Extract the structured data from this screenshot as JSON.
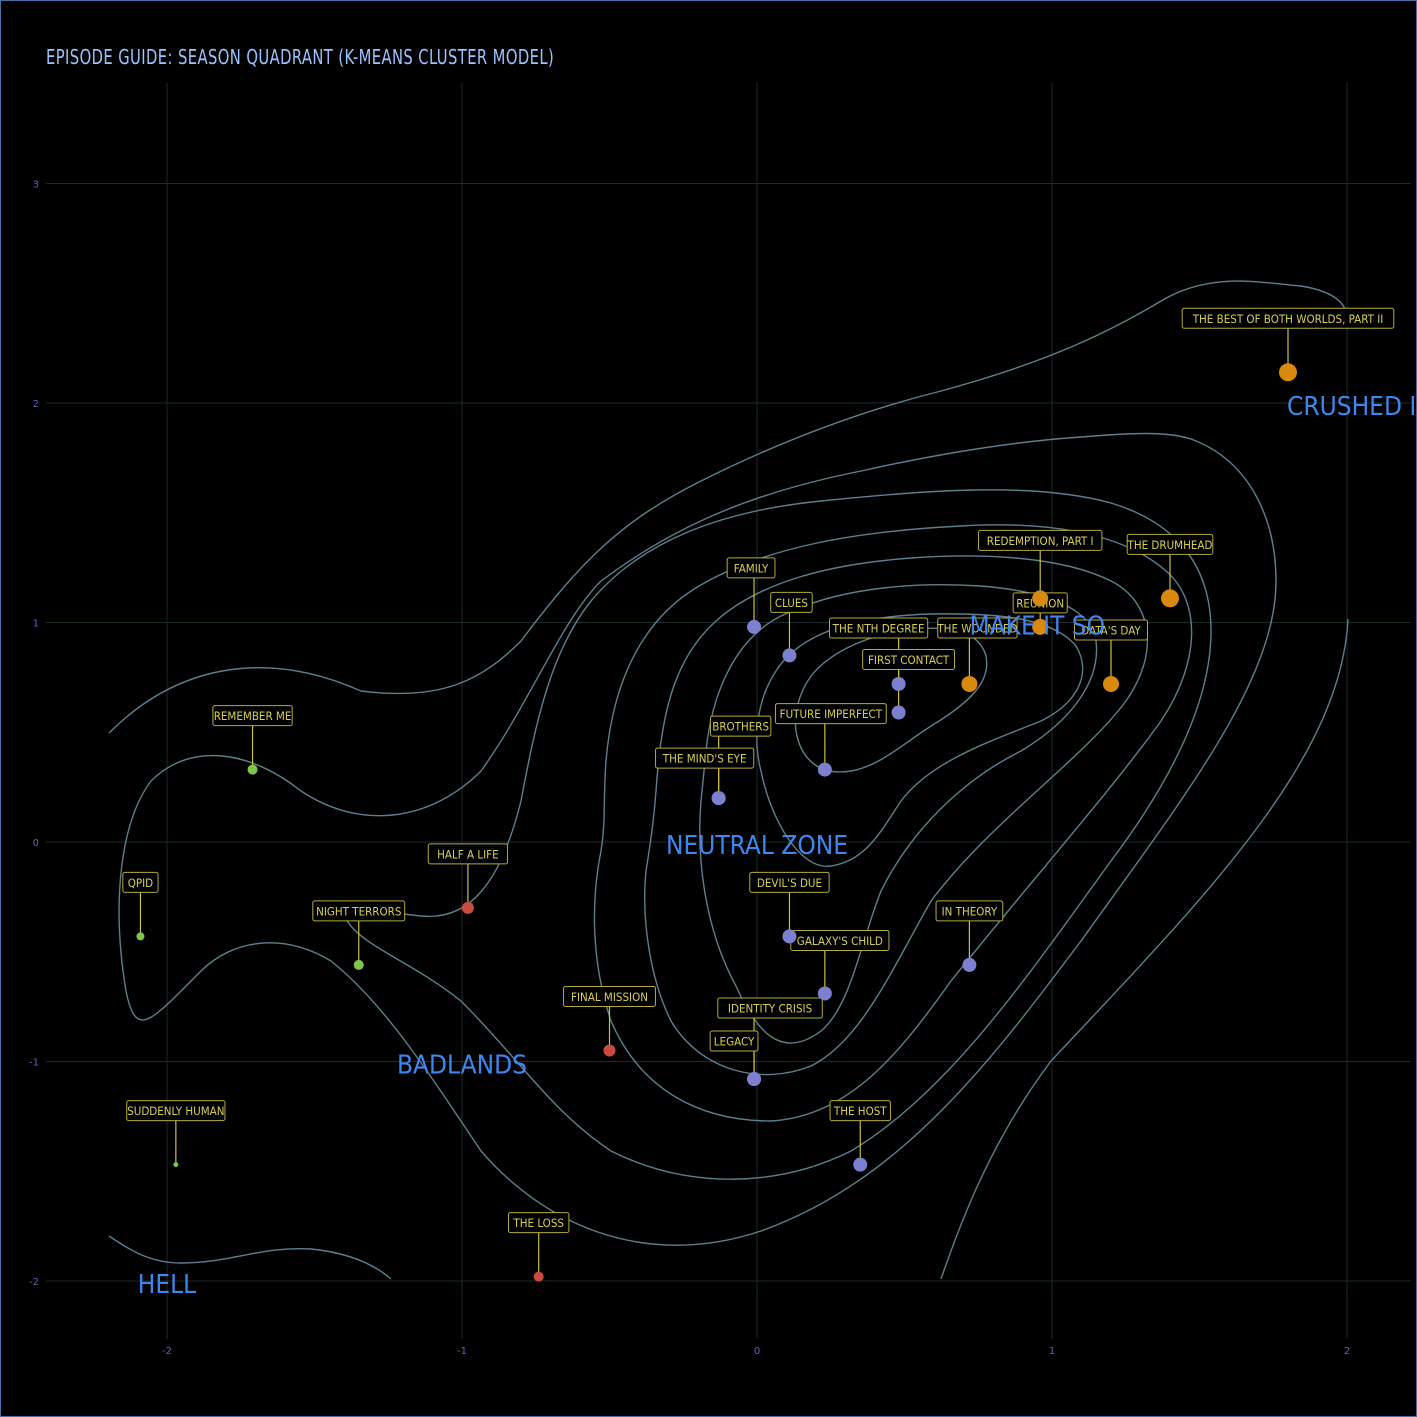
{
  "chart_data": {
    "type": "scatter",
    "title": "EPISODE GUIDE: SEASON QUADRANT (K-MEANS CLUSTER MODEL)",
    "xlabel": "",
    "ylabel": "",
    "xlim": [
      -2.3,
      2.2
    ],
    "ylim": [
      -2.2,
      3.45
    ],
    "x_ticks": [
      -2,
      -1,
      0,
      1,
      2
    ],
    "y_ticks": [
      -2,
      -1,
      0,
      1,
      2,
      3
    ],
    "grid": true,
    "cluster_colors": {
      "crushed": "#d98a0e",
      "neutral": "#7d7fcf",
      "badlands": "#c94a40",
      "hell": "#7ec64a"
    },
    "region_labels": [
      {
        "text": "CRUSHED IT",
        "x": 2.0,
        "y": 2.0
      },
      {
        "text": "MAKE IT SO",
        "x": 0.95,
        "y": 1.0
      },
      {
        "text": "NEUTRAL ZONE",
        "x": 0.0,
        "y": 0.0
      },
      {
        "text": "BADLANDS",
        "x": -1.0,
        "y": -1.0
      },
      {
        "text": "HELL",
        "x": -2.0,
        "y": -2.0
      }
    ],
    "points": [
      {
        "label": "THE BEST OF BOTH WORLDS, PART II",
        "x": 1.8,
        "y": 2.14,
        "cluster": "crushed",
        "size": 9
      },
      {
        "label": "REDEMPTION, PART I",
        "x": 0.96,
        "y": 1.11,
        "cluster": "crushed",
        "size": 8
      },
      {
        "label": "REUNION",
        "x": 0.96,
        "y": 0.98,
        "cluster": "crushed",
        "size": 8
      },
      {
        "label": "THE DRUMHEAD",
        "x": 1.4,
        "y": 1.11,
        "cluster": "crushed",
        "size": 9
      },
      {
        "label": "THE WOUNDED",
        "x": 0.72,
        "y": 0.72,
        "cluster": "crushed",
        "size": 8
      },
      {
        "label": "DATA'S DAY",
        "x": 1.2,
        "y": 0.72,
        "cluster": "crushed",
        "size": 8
      },
      {
        "label": "FAMILY",
        "x": -0.01,
        "y": 0.98,
        "cluster": "neutral",
        "size": 7
      },
      {
        "label": "CLUES",
        "x": 0.11,
        "y": 0.85,
        "cluster": "neutral",
        "size": 7
      },
      {
        "label": "THE NTH DEGREE",
        "x": 0.48,
        "y": 0.72,
        "cluster": "neutral",
        "size": 7
      },
      {
        "label": "FIRST CONTACT",
        "x": 0.48,
        "y": 0.59,
        "cluster": "neutral",
        "size": 7
      },
      {
        "label": "FUTURE IMPERFECT",
        "x": 0.23,
        "y": 0.33,
        "cluster": "neutral",
        "size": 7
      },
      {
        "label": "BROTHERS",
        "x": -0.13,
        "y": 0.2,
        "cluster": "neutral",
        "size": 7
      },
      {
        "label": "THE MIND'S EYE",
        "x": -0.13,
        "y": 0.2,
        "cluster": "neutral",
        "size": 7
      },
      {
        "label": "DEVIL'S DUE",
        "x": 0.11,
        "y": -0.43,
        "cluster": "neutral",
        "size": 7
      },
      {
        "label": "GALAXY'S CHILD",
        "x": 0.23,
        "y": -0.69,
        "cluster": "neutral",
        "size": 7
      },
      {
        "label": "IN THEORY",
        "x": 0.72,
        "y": -0.56,
        "cluster": "neutral",
        "size": 7
      },
      {
        "label": "IDENTITY CRISIS",
        "x": -0.01,
        "y": -1.08,
        "cluster": "neutral",
        "size": 7
      },
      {
        "label": "LEGACY",
        "x": -0.01,
        "y": -1.08,
        "cluster": "neutral",
        "size": 7
      },
      {
        "label": "THE HOST",
        "x": 0.35,
        "y": -1.47,
        "cluster": "neutral",
        "size": 7
      },
      {
        "label": "HALF A LIFE",
        "x": -0.98,
        "y": -0.3,
        "cluster": "badlands",
        "size": 6
      },
      {
        "label": "FINAL MISSION",
        "x": -0.5,
        "y": -0.95,
        "cluster": "badlands",
        "size": 6
      },
      {
        "label": "THE LOSS",
        "x": -0.74,
        "y": -1.98,
        "cluster": "badlands",
        "size": 5
      },
      {
        "label": "REMEMBER ME",
        "x": -1.71,
        "y": 0.33,
        "cluster": "hell",
        "size": 5
      },
      {
        "label": "QPID",
        "x": -2.09,
        "y": -0.43,
        "cluster": "hell",
        "size": 4
      },
      {
        "label": "NIGHT TERRORS",
        "x": -1.35,
        "y": -0.56,
        "cluster": "hell",
        "size": 5
      },
      {
        "label": "SUDDENLY HUMAN",
        "x": -1.97,
        "y": -1.47,
        "cluster": "hell",
        "size": 2.5
      }
    ]
  }
}
